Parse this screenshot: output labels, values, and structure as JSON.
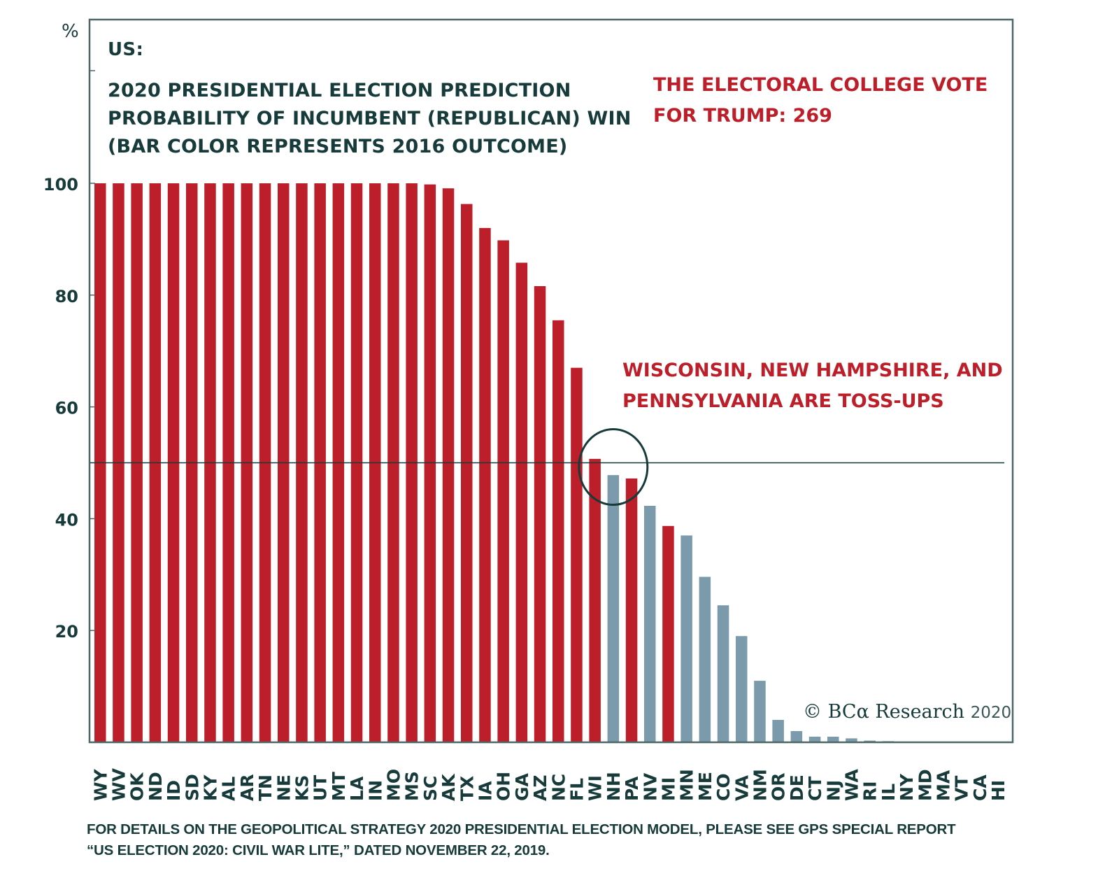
{
  "chart_data": {
    "type": "bar",
    "title": {
      "prefix": "US:",
      "lines": [
        "2020 PRESIDENTIAL ELECTION PREDICTION",
        "PROBABILITY OF INCUMBENT (REPUBLICAN) WIN",
        "(BAR COLOR REPRESENTS 2016 OUTCOME)"
      ]
    },
    "ylabel": "%",
    "xlabel": "",
    "ylim": [
      0,
      100
    ],
    "yticks": [
      20,
      40,
      60,
      80,
      100
    ],
    "grid": false,
    "reference_line": {
      "value": 50
    },
    "categories": [
      "WY",
      "WV",
      "OK",
      "ND",
      "ID",
      "SD",
      "KY",
      "AL",
      "AR",
      "TN",
      "NE",
      "KS",
      "UT",
      "MT",
      "LA",
      "IN",
      "MO",
      "MS",
      "SC",
      "AK",
      "TX",
      "IA",
      "OH",
      "GA",
      "AZ",
      "NC",
      "FL",
      "WI",
      "NH",
      "PA",
      "NV",
      "MI",
      "MN",
      "ME",
      "CO",
      "VA",
      "NM",
      "OR",
      "DE",
      "CT",
      "NJ",
      "WA",
      "RI",
      "IL",
      "NY",
      "MD",
      "MA",
      "VT",
      "CA",
      "HI"
    ],
    "values": [
      100,
      100,
      100,
      100,
      100,
      100,
      100,
      100,
      100,
      100,
      100,
      100,
      100,
      100,
      100,
      100,
      100,
      100,
      99.8,
      99.1,
      96.3,
      92,
      89.8,
      85.8,
      81.6,
      75.5,
      67,
      50.7,
      47.8,
      47.2,
      42.3,
      38.7,
      37,
      29.6,
      24.5,
      19,
      11,
      4,
      2,
      1,
      1,
      0.7,
      0.3,
      0.2,
      0,
      0,
      0,
      0,
      0,
      0
    ],
    "outcome_2016": [
      "R",
      "R",
      "R",
      "R",
      "R",
      "R",
      "R",
      "R",
      "R",
      "R",
      "R",
      "R",
      "R",
      "R",
      "R",
      "R",
      "R",
      "R",
      "R",
      "R",
      "R",
      "R",
      "R",
      "R",
      "R",
      "R",
      "R",
      "R",
      "D",
      "R",
      "D",
      "R",
      "D",
      "D",
      "D",
      "D",
      "D",
      "D",
      "D",
      "D",
      "D",
      "D",
      "D",
      "D",
      "D",
      "D",
      "D",
      "D",
      "D",
      "D"
    ],
    "legend": {
      "R": {
        "meaning": "Republican win in 2016",
        "color": "#bd1f2a"
      },
      "D": {
        "meaning": "Democratic win in 2016",
        "color": "#7b9aab"
      }
    },
    "annotations": [
      {
        "text_lines": [
          "THE ELECTORAL COLLEGE VOTE",
          "FOR TRUMP: 269"
        ],
        "color": "#bd1f2a"
      },
      {
        "text_lines": [
          "WISCONSIN, NEW HAMPSHIRE, AND",
          "PENNSYLVANIA ARE TOSS-UPS"
        ],
        "color": "#bd1f2a",
        "highlight": [
          "WI",
          "NH",
          "PA"
        ]
      }
    ]
  },
  "colors": {
    "republican": "#bd1f2a",
    "democrat": "#7b9aab",
    "text": "#173a3a",
    "frame": "#4d6666"
  },
  "copyright": {
    "brand": "© BCα Research",
    "year": "2020"
  },
  "footnote": {
    "lines": [
      "FOR DETAILS ON THE GEOPOLITICAL STRATEGY 2020 PRESIDENTIAL ELECTION MODEL, PLEASE SEE GPS SPECIAL REPORT",
      "“US ELECTION 2020: CIVIL WAR LITE,” DATED NOVEMBER 22, 2019."
    ]
  }
}
